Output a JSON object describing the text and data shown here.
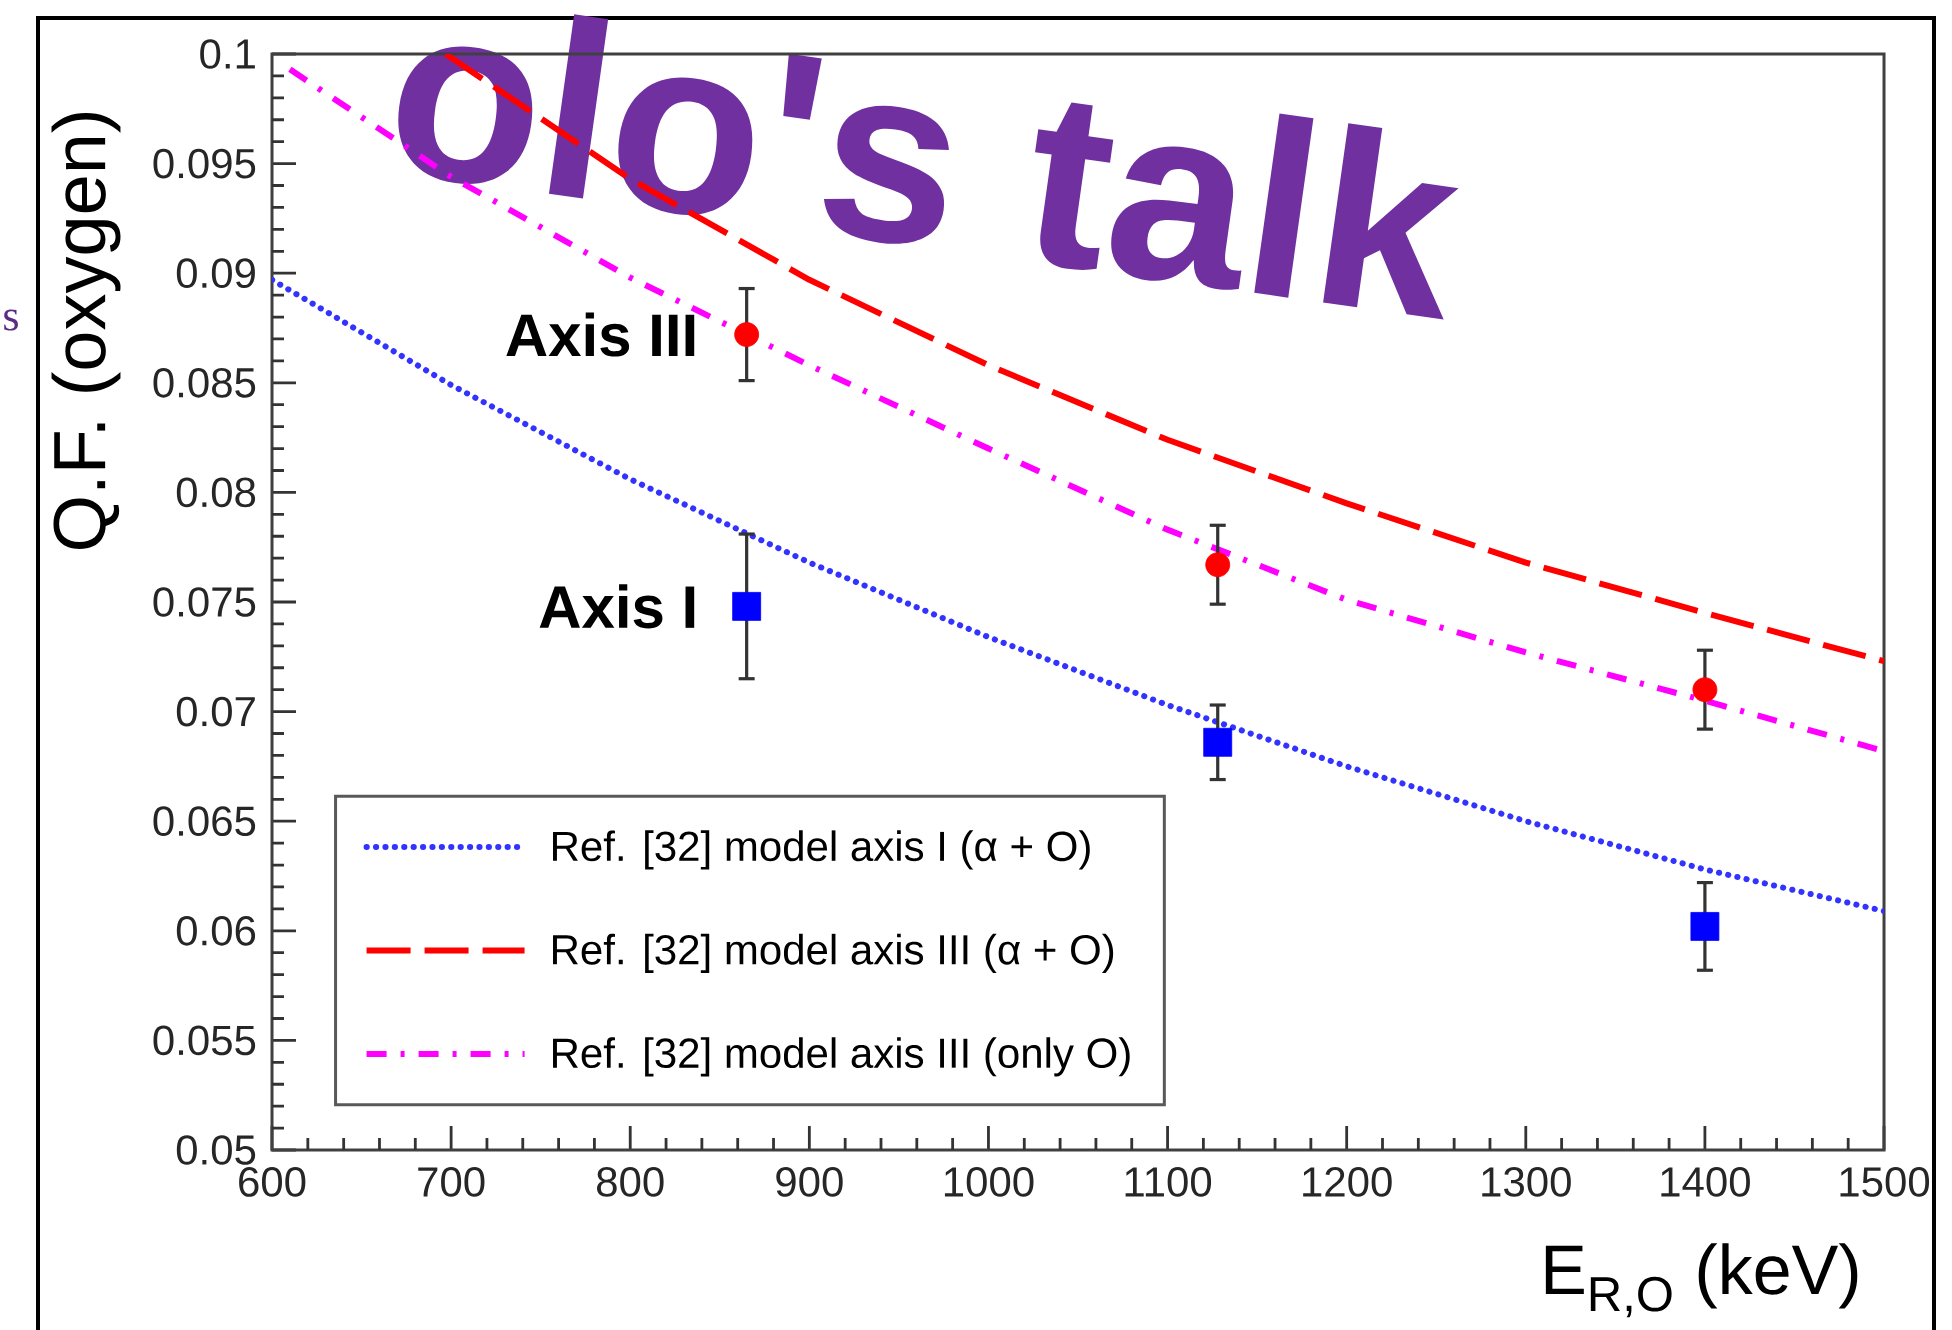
{
  "chart_data": {
    "type": "line",
    "xlabel": "E$_{R,O}$ (keV)",
    "ylabel": "Q.F. (oxygen)",
    "xlim": [
      600,
      1500
    ],
    "ylim": [
      0.05,
      0.1
    ],
    "xticks": [
      600,
      {
        "value": 620,
        "label": null
      },
      {
        "value": 640,
        "label": null
      },
      {
        "value": 660,
        "label": null
      },
      {
        "value": 680,
        "label": null
      },
      700,
      {
        "value": 720,
        "label": null
      },
      {
        "value": 740,
        "label": null
      },
      {
        "value": 760,
        "label": null
      },
      {
        "value": 780,
        "label": null
      },
      800,
      {
        "value": 820,
        "label": null
      },
      {
        "value": 840,
        "label": null
      },
      {
        "value": 860,
        "label": null
      },
      {
        "value": 880,
        "label": null
      },
      900,
      {
        "value": 920,
        "label": null
      },
      {
        "value": 940,
        "label": null
      },
      {
        "value": 960,
        "label": null
      },
      {
        "value": 980,
        "label": null
      },
      1000,
      {
        "value": 1020,
        "label": null
      },
      {
        "value": 1040,
        "label": null
      },
      {
        "value": 1060,
        "label": null
      },
      {
        "value": 1080,
        "label": null
      },
      1100,
      {
        "value": 1120,
        "label": null
      },
      {
        "value": 1140,
        "label": null
      },
      {
        "value": 1160,
        "label": null
      },
      {
        "value": 1180,
        "label": null
      },
      1200,
      {
        "value": 1220,
        "label": null
      },
      {
        "value": 1240,
        "label": null
      },
      {
        "value": 1260,
        "label": null
      },
      {
        "value": 1280,
        "label": null
      },
      1300,
      {
        "value": 1320,
        "label": null
      },
      {
        "value": 1340,
        "label": null
      },
      {
        "value": 1360,
        "label": null
      },
      {
        "value": 1380,
        "label": null
      },
      1400,
      {
        "value": 1420,
        "label": null
      },
      {
        "value": 1440,
        "label": null
      },
      {
        "value": 1460,
        "label": null
      },
      {
        "value": 1480,
        "label": null
      },
      1500
    ],
    "yticks": [
      0.05,
      {
        "value": 0.051,
        "label": null
      },
      {
        "value": 0.052,
        "label": null
      },
      {
        "value": 0.053,
        "label": null
      },
      {
        "value": 0.054,
        "label": null
      },
      0.055,
      {
        "value": 0.056,
        "label": null
      },
      {
        "value": 0.057,
        "label": null
      },
      {
        "value": 0.058,
        "label": null
      },
      {
        "value": 0.059,
        "label": null
      },
      0.06,
      {
        "value": 0.061,
        "label": null
      },
      {
        "value": 0.062,
        "label": null
      },
      {
        "value": 0.063,
        "label": null
      },
      {
        "value": 0.064,
        "label": null
      },
      0.065,
      {
        "value": 0.066,
        "label": null
      },
      {
        "value": 0.067,
        "label": null
      },
      {
        "value": 0.068,
        "label": null
      },
      {
        "value": 0.069,
        "label": null
      },
      0.07,
      {
        "value": 0.071,
        "label": null
      },
      {
        "value": 0.072,
        "label": null
      },
      {
        "value": 0.073,
        "label": null
      },
      {
        "value": 0.074,
        "label": null
      },
      0.075,
      {
        "value": 0.076,
        "label": null
      },
      {
        "value": 0.077,
        "label": null
      },
      {
        "value": 0.078,
        "label": null
      },
      {
        "value": 0.079,
        "label": null
      },
      0.08,
      {
        "value": 0.081,
        "label": null
      },
      {
        "value": 0.082,
        "label": null
      },
      {
        "value": 0.083,
        "label": null
      },
      {
        "value": 0.084,
        "label": null
      },
      0.085,
      {
        "value": 0.086,
        "label": null
      },
      {
        "value": 0.087,
        "label": null
      },
      {
        "value": 0.088,
        "label": null
      },
      {
        "value": 0.089,
        "label": null
      },
      0.09,
      {
        "value": 0.091,
        "label": null
      },
      {
        "value": 0.092,
        "label": null
      },
      {
        "value": 0.093,
        "label": null
      },
      {
        "value": 0.094,
        "label": null
      },
      0.095,
      {
        "value": 0.096,
        "label": null
      },
      {
        "value": 0.097,
        "label": null
      },
      {
        "value": 0.098,
        "label": null
      },
      {
        "value": 0.099,
        "label": null
      },
      0.1
    ],
    "legend": "bottom left",
    "annotations": [
      "olo's talk",
      "s"
    ],
    "series": [
      {
        "name": "Ref. [32] model axis I (α + O)",
        "type": "line",
        "color": "#3333ff",
        "line_style": "dotted",
        "marker": "none",
        "x": [
          600,
          700,
          800,
          900,
          1000,
          1100,
          1200,
          1300,
          1400,
          1500
        ],
        "values": [
          0.0897,
          0.0849,
          0.0806,
          0.0768,
          0.0734,
          0.0703,
          0.0675,
          0.065,
          0.0628,
          0.0609
        ]
      },
      {
        "name": "Ref. [32] model axis III (α + O)",
        "type": "line",
        "color": "#ff0000",
        "line_style": "dashed",
        "marker": "none",
        "x": [
          697,
          800,
          900,
          1000,
          1100,
          1200,
          1300,
          1400,
          1500
        ],
        "values": [
          0.1,
          0.0943,
          0.0897,
          0.0858,
          0.0824,
          0.0795,
          0.0768,
          0.0745,
          0.0723
        ]
      },
      {
        "name": "Ref. [32] model axis III (only O)",
        "type": "line",
        "color": "#ff00ff",
        "line_style": "dashdot",
        "marker": "none",
        "x": [
          610,
          700,
          800,
          900,
          1000,
          1100,
          1200,
          1300,
          1400,
          1500
        ],
        "values": [
          0.0993,
          0.0944,
          0.0898,
          0.0858,
          0.082,
          0.0783,
          0.0751,
          0.0727,
          0.0705,
          0.0682
        ]
      },
      {
        "name": "Axis III",
        "type": "scatter",
        "color": "#ff0000",
        "marker": "circle",
        "x": [
          865,
          1128,
          1400
        ],
        "values": [
          0.0872,
          0.0767,
          0.071
        ],
        "errors": [
          0.0021,
          0.0018,
          0.0018
        ]
      },
      {
        "name": "Axis I",
        "type": "scatter",
        "color": "#0000ff",
        "marker": "square",
        "x": [
          865,
          1128,
          1400
        ],
        "values": [
          0.0748,
          0.0686,
          0.0602
        ],
        "errors": [
          0.0033,
          0.0017,
          0.002
        ]
      }
    ]
  }
}
